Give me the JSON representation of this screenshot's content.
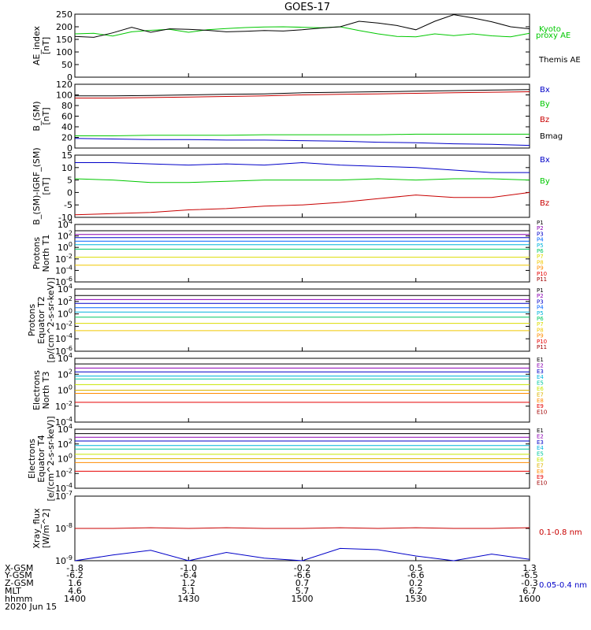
{
  "title": "GOES-17",
  "chart_data": [
    {
      "type": "line",
      "ylabel": [
        "AE_index",
        "[nT]"
      ],
      "ylim": [
        0,
        250
      ],
      "ytick_labels": [
        "0",
        "50",
        "100",
        "150",
        "200",
        "250"
      ],
      "x": [
        1400,
        1405,
        1410,
        1415,
        1420,
        1425,
        1430,
        1435,
        1440,
        1445,
        1450,
        1455,
        1500,
        1505,
        1510,
        1515,
        1520,
        1525,
        1530,
        1535,
        1540,
        1545,
        1550,
        1555,
        1600
      ],
      "series": [
        {
          "name": "Kyoto proxy AE",
          "color": "#00c800",
          "values": [
            172,
            174,
            163,
            180,
            186,
            190,
            178,
            188,
            193,
            197,
            199,
            200,
            198,
            196,
            200,
            185,
            172,
            162,
            160,
            172,
            165,
            172,
            164,
            160,
            174
          ]
        },
        {
          "name": "Themis AE",
          "color": "#000000",
          "values": [
            162,
            158,
            176,
            198,
            178,
            192,
            190,
            186,
            180,
            182,
            185,
            183,
            188,
            195,
            200,
            222,
            215,
            205,
            188,
            222,
            248,
            235,
            220,
            200,
            192
          ]
        }
      ]
    },
    {
      "type": "line",
      "ylabel": [
        "B_(SM)",
        "[nT]"
      ],
      "ylim": [
        0,
        120
      ],
      "ytick_labels": [
        "0",
        "20",
        "40",
        "60",
        "80",
        "100",
        "120"
      ],
      "x": [
        1400,
        1410,
        1420,
        1430,
        1440,
        1450,
        1500,
        1510,
        1520,
        1530,
        1540,
        1550,
        1600
      ],
      "series": [
        {
          "name": "Bx",
          "color": "#0000c8",
          "values": [
            18,
            17,
            16,
            16,
            15,
            15,
            14,
            13,
            11,
            10,
            8,
            7,
            5
          ]
        },
        {
          "name": "By",
          "color": "#00c800",
          "values": [
            23,
            23,
            24,
            24,
            24,
            25,
            25,
            25,
            25,
            26,
            26,
            26,
            26
          ]
        },
        {
          "name": "Bz",
          "color": "#c80000",
          "values": [
            94,
            94,
            95,
            96,
            97,
            98,
            100,
            101,
            102,
            103,
            104,
            105,
            106
          ]
        },
        {
          "name": "Bmag",
          "color": "#000000",
          "values": [
            98,
            98,
            99,
            100,
            101,
            102,
            104,
            105,
            106,
            107,
            108,
            109,
            110
          ]
        }
      ]
    },
    {
      "type": "line",
      "ylabel": [
        "B_(SM)-IGRF_(SM)",
        "[nT]"
      ],
      "ylim": [
        -10,
        15
      ],
      "ytick_labels": [
        "-10",
        "-5",
        "0",
        "5",
        "10",
        "15"
      ],
      "x": [
        1400,
        1410,
        1420,
        1430,
        1440,
        1450,
        1500,
        1510,
        1520,
        1530,
        1540,
        1550,
        1600
      ],
      "series": [
        {
          "name": "Bx",
          "color": "#0000c8",
          "values": [
            12,
            12,
            11.5,
            11,
            11.5,
            11,
            12,
            11,
            10.5,
            10,
            9,
            8,
            8
          ]
        },
        {
          "name": "By",
          "color": "#00c800",
          "values": [
            5.5,
            5,
            4,
            4,
            4.5,
            5,
            5,
            5,
            5.5,
            5,
            5.5,
            5.5,
            5
          ]
        },
        {
          "name": "Bz",
          "color": "#c80000",
          "values": [
            -9,
            -8.5,
            -8,
            -7,
            -6.5,
            -5.5,
            -5,
            -4,
            -2.5,
            -1,
            -2,
            -2,
            0
          ]
        }
      ]
    },
    {
      "type": "line",
      "ylabel": [
        "Protons",
        "North T1"
      ],
      "log": true,
      "ylim": [
        1e-06,
        10000
      ],
      "ytick_labels": [
        "10^-6",
        "10^-4",
        "10^-2",
        "10^0",
        "10^2",
        "10^4"
      ],
      "x": [
        1400,
        1600
      ],
      "series": [
        {
          "name": "P1",
          "color": "#000000",
          "values": [
            800,
            800
          ]
        },
        {
          "name": "P2",
          "color": "#8c00b4",
          "values": [
            180,
            180
          ]
        },
        {
          "name": "P3",
          "color": "#0000c8",
          "values": [
            50,
            50
          ]
        },
        {
          "name": "P4",
          "color": "#0064ff",
          "values": [
            12,
            12
          ]
        },
        {
          "name": "P5",
          "color": "#00b4dc",
          "values": [
            3,
            3
          ]
        },
        {
          "name": "P6",
          "color": "#00c864",
          "values": [
            0.5,
            0.5
          ]
        },
        {
          "name": "P7",
          "color": "#dcdc00",
          "values": [
            0.02,
            0.02
          ]
        },
        {
          "name": "P8",
          "color": "#f0c800",
          "values": [
            0.0008,
            0.0008
          ]
        },
        {
          "name": "P9",
          "color": "#ff8c00",
          "values": [
            null,
            null
          ]
        },
        {
          "name": "P10",
          "color": "#e60000",
          "values": [
            null,
            null
          ]
        },
        {
          "name": "P11",
          "color": "#a00000",
          "values": [
            null,
            null
          ]
        }
      ]
    },
    {
      "type": "line",
      "ylabel": [
        "Protons",
        "Equator T2",
        "[p/(cm^2-s-sr-keV)]"
      ],
      "log": true,
      "ylim": [
        1e-06,
        10000
      ],
      "ytick_labels": [
        "10^-6",
        "10^-4",
        "10^-2",
        "10^0",
        "10^2",
        "10^4"
      ],
      "x": [
        1400,
        1600
      ],
      "series": [
        {
          "name": "P1",
          "color": "#000000",
          "values": [
            900,
            900
          ]
        },
        {
          "name": "P2",
          "color": "#8c00b4",
          "values": [
            200,
            200
          ]
        },
        {
          "name": "P3",
          "color": "#0000c8",
          "values": [
            50,
            50
          ]
        },
        {
          "name": "P4",
          "color": "#0064ff",
          "values": [
            10,
            10
          ]
        },
        {
          "name": "P5",
          "color": "#00b4dc",
          "values": [
            2,
            2
          ]
        },
        {
          "name": "P6",
          "color": "#00c864",
          "values": [
            0.3,
            0.3
          ]
        },
        {
          "name": "P7",
          "color": "#dcdc00",
          "values": [
            0.03,
            0.03
          ]
        },
        {
          "name": "P8",
          "color": "#f0c800",
          "values": [
            0.002,
            0.002
          ]
        },
        {
          "name": "P9",
          "color": "#ff8c00",
          "values": [
            null,
            null
          ]
        },
        {
          "name": "P10",
          "color": "#e60000",
          "values": [
            null,
            null
          ]
        },
        {
          "name": "P11",
          "color": "#a00000",
          "values": [
            null,
            null
          ]
        }
      ]
    },
    {
      "type": "line",
      "ylabel": [
        "Electrons",
        "North T3"
      ],
      "log": true,
      "ylim": [
        0.0001,
        10000
      ],
      "ytick_labels": [
        "10^-4",
        "10^-2",
        "10^0",
        "10^2",
        "10^4"
      ],
      "x": [
        1400,
        1600
      ],
      "series": [
        {
          "name": "E1",
          "color": "#000000",
          "values": [
            2000,
            2000
          ]
        },
        {
          "name": "E2",
          "color": "#8c00b4",
          "values": [
            600,
            600
          ]
        },
        {
          "name": "E3",
          "color": "#0000c8",
          "values": [
            200,
            200
          ]
        },
        {
          "name": "E4",
          "color": "#00b4dc",
          "values": [
            60,
            60
          ]
        },
        {
          "name": "E5",
          "color": "#00c8a0",
          "values": [
            25,
            25
          ]
        },
        {
          "name": "E6",
          "color": "#c8e600",
          "values": [
            5,
            5
          ]
        },
        {
          "name": "E7",
          "color": "#dcb400",
          "values": [
            1,
            1
          ]
        },
        {
          "name": "E8",
          "color": "#ff8c00",
          "values": [
            0.4,
            0.4
          ]
        },
        {
          "name": "E9",
          "color": "#e60000",
          "values": [
            0.03,
            0.03
          ]
        },
        {
          "name": "E10",
          "color": "#a00000",
          "values": [
            null,
            null
          ]
        }
      ]
    },
    {
      "type": "line",
      "ylabel": [
        "Electrons",
        "Equator T4",
        "[e/(cm^2-s-sr-keV)]"
      ],
      "log": true,
      "ylim": [
        0.0001,
        10000
      ],
      "ytick_labels": [
        "10^-4",
        "10^-2",
        "10^0",
        "10^2",
        "10^4"
      ],
      "x": [
        1400,
        1600
      ],
      "series": [
        {
          "name": "E1",
          "color": "#000000",
          "values": [
            2500,
            2500
          ]
        },
        {
          "name": "E2",
          "color": "#8c00b4",
          "values": [
            800,
            800
          ]
        },
        {
          "name": "E3",
          "color": "#0000c8",
          "values": [
            250,
            250
          ]
        },
        {
          "name": "E4",
          "color": "#00b4dc",
          "values": [
            60,
            60
          ]
        },
        {
          "name": "E5",
          "color": "#00c8a0",
          "values": [
            20,
            20
          ]
        },
        {
          "name": "E6",
          "color": "#c8e600",
          "values": [
            4,
            4
          ]
        },
        {
          "name": "E7",
          "color": "#dcb400",
          "values": [
            1,
            1
          ]
        },
        {
          "name": "E8",
          "color": "#ff8c00",
          "values": [
            0.3,
            0.3
          ]
        },
        {
          "name": "E9",
          "color": "#e60000",
          "values": [
            0.02,
            0.02
          ]
        },
        {
          "name": "E10",
          "color": "#a00000",
          "values": [
            null,
            null
          ]
        }
      ]
    },
    {
      "type": "line",
      "ylabel": [
        "Xray_flux",
        "[W/m^2]"
      ],
      "log": true,
      "ylim": [
        1e-09,
        1e-07
      ],
      "ytick_labels": [
        "10^-9",
        "10^-8",
        "10^-7"
      ],
      "x": [
        1400,
        1410,
        1420,
        1430,
        1440,
        1450,
        1500,
        1510,
        1520,
        1530,
        1540,
        1550,
        1600
      ],
      "series": [
        {
          "name": "0.1-0.8 nm",
          "color": "#c80000",
          "values": [
            1e-08,
            1e-08,
            1.05e-08,
            1e-08,
            1.05e-08,
            1e-08,
            1e-08,
            1.05e-08,
            1e-08,
            1.05e-08,
            1e-08,
            1e-08,
            1.05e-08
          ]
        },
        {
          "name": "0.05-0.4 nm",
          "color": "#0000c8",
          "values": [
            1e-09,
            1.5e-09,
            2.1e-09,
            1e-09,
            1.8e-09,
            1.2e-09,
            1e-09,
            2.4e-09,
            2.2e-09,
            1.4e-09,
            1e-09,
            1.6e-09,
            1.1e-09
          ]
        }
      ]
    }
  ],
  "x_axis": {
    "row_labels": [
      "X-GSM",
      "Y-GSM",
      "Z-GSM",
      "MLT",
      "hhmm"
    ],
    "date": "2020 Jun 15",
    "xlim": [
      1400,
      1600
    ],
    "ticks": [
      {
        "time": 1400,
        "values": [
          "-1.8",
          "-6.2",
          "1.6",
          "4.6",
          "1400"
        ]
      },
      {
        "time": 1430,
        "values": [
          "-1.0",
          "-6.4",
          "1.2",
          "5.1",
          "1430"
        ]
      },
      {
        "time": 1500,
        "values": [
          "-0.2",
          "-6.6",
          "0.7",
          "5.7",
          "1500"
        ]
      },
      {
        "time": 1530,
        "values": [
          "0.5",
          "-6.6",
          "0.2",
          "6.2",
          "1530"
        ]
      },
      {
        "time": 1600,
        "values": [
          "1.3",
          "-6.5",
          "-0.3",
          "6.7",
          "1600"
        ]
      }
    ]
  }
}
